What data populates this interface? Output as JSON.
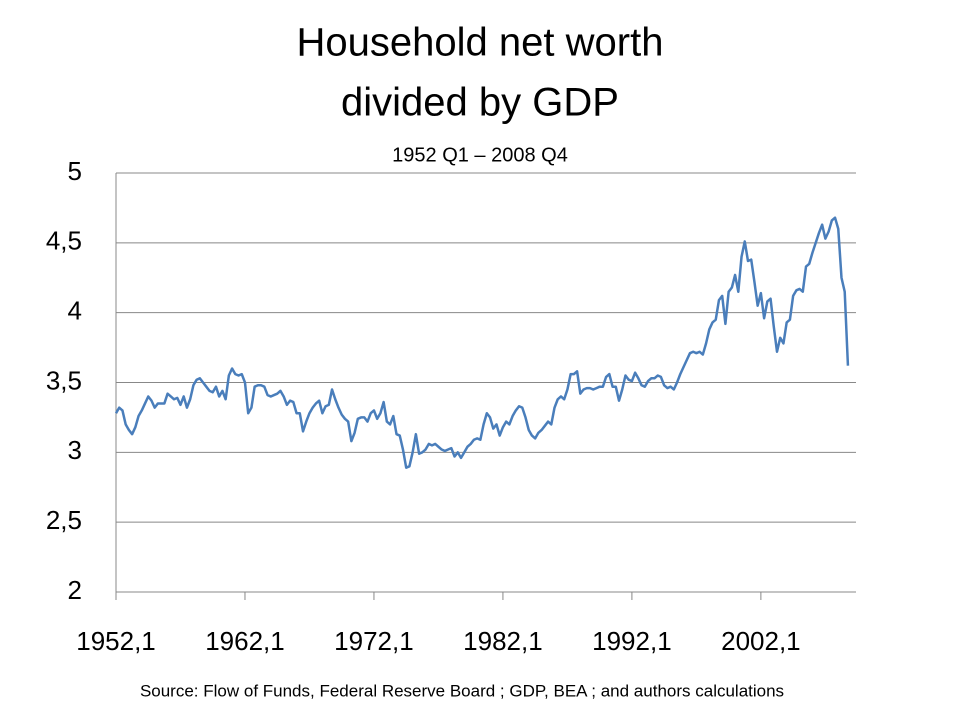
{
  "chart_data": {
    "type": "line",
    "title": [
      "Household net worth",
      "divided by GDP"
    ],
    "subtitle": "1952 Q1 – 2008 Q4",
    "source": "Source: Flow of Funds, Federal Reserve Board ; GDP, BEA ; and authors calculations",
    "categories": [
      "1952,1",
      null,
      null,
      null,
      null,
      null,
      null,
      null,
      null,
      null,
      null,
      null,
      null,
      null,
      null,
      null,
      null,
      null,
      null,
      null,
      null,
      null,
      null,
      null,
      null,
      null,
      null,
      null,
      null,
      null,
      null,
      null,
      null,
      null,
      null,
      null,
      null,
      null,
      null,
      null,
      "1962,1",
      null,
      null,
      null,
      null,
      null,
      null,
      null,
      null,
      null,
      null,
      null,
      null,
      null,
      null,
      null,
      null,
      null,
      null,
      null,
      null,
      null,
      null,
      null,
      null,
      null,
      null,
      null,
      null,
      null,
      null,
      null,
      null,
      null,
      null,
      null,
      null,
      null,
      null,
      null,
      "1972,1",
      null,
      null,
      null,
      null,
      null,
      null,
      null,
      null,
      null,
      null,
      null,
      null,
      null,
      null,
      null,
      null,
      null,
      null,
      null,
      null,
      null,
      null,
      null,
      null,
      null,
      null,
      null,
      null,
      null,
      null,
      null,
      null,
      null,
      null,
      null,
      null,
      null,
      null,
      null,
      "1982,1",
      null,
      null,
      null,
      null,
      null,
      null,
      null,
      null,
      null,
      null,
      null,
      null,
      null,
      null,
      null,
      null,
      null,
      null,
      null,
      null,
      null,
      null,
      null,
      null,
      null,
      null,
      null,
      null,
      null,
      null,
      null,
      null,
      null,
      null,
      null,
      null,
      null,
      null,
      null,
      "1992,1",
      null,
      null,
      null,
      null,
      null,
      null,
      null,
      null,
      null,
      null,
      null,
      null,
      null,
      null,
      null,
      null,
      null,
      null,
      null,
      null,
      null,
      null,
      null,
      null,
      null,
      null,
      null,
      null,
      null,
      null,
      null,
      null,
      null,
      null,
      null,
      null,
      null,
      null,
      null,
      "2002,1",
      null,
      null,
      null,
      null,
      null,
      null,
      null,
      null,
      null,
      null,
      null,
      null,
      null,
      null,
      null,
      null,
      null,
      null,
      null,
      null,
      null,
      null,
      null,
      null,
      null,
      null,
      null
    ],
    "series": [
      {
        "color": "#4a7ebb",
        "values": [
          3.28,
          3.32,
          3.3,
          3.2,
          3.16,
          3.13,
          3.18,
          3.26,
          3.3,
          3.35,
          3.4,
          3.37,
          3.32,
          3.35,
          3.35,
          3.35,
          3.42,
          3.4,
          3.38,
          3.39,
          3.34,
          3.4,
          3.32,
          3.38,
          3.48,
          3.52,
          3.53,
          3.5,
          3.47,
          3.44,
          3.43,
          3.47,
          3.4,
          3.44,
          3.38,
          3.55,
          3.6,
          3.56,
          3.55,
          3.56,
          3.5,
          3.28,
          3.32,
          3.47,
          3.48,
          3.48,
          3.47,
          3.41,
          3.4,
          3.41,
          3.42,
          3.44,
          3.4,
          3.34,
          3.37,
          3.36,
          3.28,
          3.28,
          3.15,
          3.22,
          3.28,
          3.32,
          3.35,
          3.37,
          3.28,
          3.33,
          3.34,
          3.45,
          3.38,
          3.32,
          3.27,
          3.24,
          3.22,
          3.08,
          3.14,
          3.24,
          3.25,
          3.25,
          3.22,
          3.28,
          3.3,
          3.24,
          3.28,
          3.36,
          3.22,
          3.2,
          3.26,
          3.13,
          3.12,
          3.02,
          2.89,
          2.9,
          3.0,
          3.13,
          2.99,
          3.0,
          3.02,
          3.06,
          3.05,
          3.06,
          3.04,
          3.02,
          3.01,
          3.02,
          3.03,
          2.97,
          3.0,
          2.96,
          3.0,
          3.04,
          3.06,
          3.09,
          3.1,
          3.09,
          3.2,
          3.28,
          3.25,
          3.17,
          3.2,
          3.12,
          3.18,
          3.22,
          3.2,
          3.26,
          3.3,
          3.33,
          3.32,
          3.25,
          3.16,
          3.12,
          3.1,
          3.14,
          3.16,
          3.19,
          3.22,
          3.2,
          3.32,
          3.38,
          3.4,
          3.38,
          3.45,
          3.56,
          3.56,
          3.58,
          3.42,
          3.45,
          3.46,
          3.46,
          3.45,
          3.46,
          3.47,
          3.47,
          3.54,
          3.56,
          3.47,
          3.47,
          3.37,
          3.45,
          3.55,
          3.52,
          3.51,
          3.57,
          3.53,
          3.48,
          3.47,
          3.51,
          3.53,
          3.53,
          3.55,
          3.54,
          3.48,
          3.46,
          3.47,
          3.45,
          3.5,
          3.56,
          3.61,
          3.66,
          3.71,
          3.72,
          3.71,
          3.72,
          3.7,
          3.78,
          3.88,
          3.93,
          3.95,
          4.09,
          4.12,
          3.92,
          4.15,
          4.18,
          4.27,
          4.15,
          4.4,
          4.51,
          4.37,
          4.38,
          4.22,
          4.05,
          4.14,
          3.96,
          4.08,
          4.1,
          3.9,
          3.72,
          3.82,
          3.78,
          3.93,
          3.95,
          4.12,
          4.16,
          4.17,
          4.15,
          4.33,
          4.35,
          4.43,
          4.5,
          4.57,
          4.63,
          4.53,
          4.58,
          4.66,
          4.68,
          4.6,
          4.25,
          4.15,
          3.62
        ]
      }
    ],
    "ylim": [
      2,
      5
    ],
    "yticks": [
      2,
      {
        "value": 2.5,
        "label": "2,5"
      },
      3,
      {
        "value": 3.5,
        "label": "3,5"
      },
      4,
      {
        "value": 4.5,
        "label": "4,5"
      },
      5
    ],
    "grid": true
  }
}
